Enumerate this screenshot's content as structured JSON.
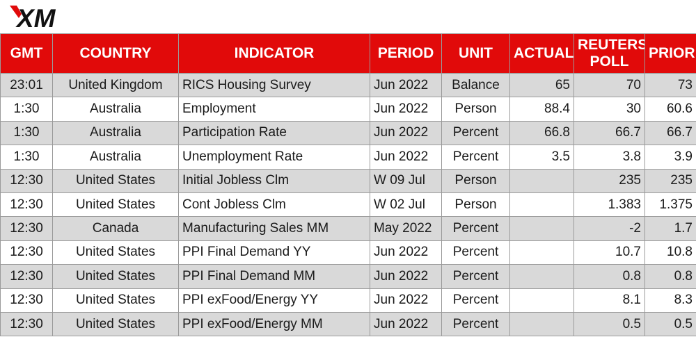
{
  "brand": {
    "logo_text": "XM",
    "accent": "#e10a0a"
  },
  "columns": [
    "GMT",
    "COUNTRY",
    "INDICATOR",
    "PERIOD",
    "UNIT",
    "ACTUAL",
    "REUTERS POLL",
    "PRIOR"
  ],
  "rows": [
    {
      "gmt": "23:01",
      "country": "United Kingdom",
      "indicator": "RICS Housing Survey",
      "period": "Jun 2022",
      "unit": "Balance",
      "actual": "65",
      "poll": "70",
      "prior": "73"
    },
    {
      "gmt": "1:30",
      "country": "Australia",
      "indicator": "Employment",
      "period": "Jun 2022",
      "unit": "Person",
      "actual": "88.4",
      "poll": "30",
      "prior": "60.6"
    },
    {
      "gmt": "1:30",
      "country": "Australia",
      "indicator": "Participation Rate",
      "period": "Jun 2022",
      "unit": "Percent",
      "actual": "66.8",
      "poll": "66.7",
      "prior": "66.7"
    },
    {
      "gmt": "1:30",
      "country": "Australia",
      "indicator": "Unemployment Rate",
      "period": "Jun 2022",
      "unit": "Percent",
      "actual": "3.5",
      "poll": "3.8",
      "prior": "3.9"
    },
    {
      "gmt": "12:30",
      "country": "United States",
      "indicator": "Initial Jobless Clm",
      "period": "W 09 Jul",
      "unit": "Person",
      "actual": "",
      "poll": "235",
      "prior": "235"
    },
    {
      "gmt": "12:30",
      "country": "United States",
      "indicator": "Cont Jobless Clm",
      "period": "W 02 Jul",
      "unit": "Person",
      "actual": "",
      "poll": "1.383",
      "prior": "1.375"
    },
    {
      "gmt": "12:30",
      "country": "Canada",
      "indicator": "Manufacturing Sales MM",
      "period": "May 2022",
      "unit": "Percent",
      "actual": "",
      "poll": "-2",
      "prior": "1.7"
    },
    {
      "gmt": "12:30",
      "country": "United States",
      "indicator": "PPI Final Demand YY",
      "period": "Jun 2022",
      "unit": "Percent",
      "actual": "",
      "poll": "10.7",
      "prior": "10.8"
    },
    {
      "gmt": "12:30",
      "country": "United States",
      "indicator": "PPI Final Demand MM",
      "period": "Jun 2022",
      "unit": "Percent",
      "actual": "",
      "poll": "0.8",
      "prior": "0.8"
    },
    {
      "gmt": "12:30",
      "country": "United States",
      "indicator": "PPI exFood/Energy YY",
      "period": "Jun 2022",
      "unit": "Percent",
      "actual": "",
      "poll": "8.1",
      "prior": "8.3"
    },
    {
      "gmt": "12:30",
      "country": "United States",
      "indicator": "PPI exFood/Energy MM",
      "period": "Jun 2022",
      "unit": "Percent",
      "actual": "",
      "poll": "0.5",
      "prior": "0.5"
    }
  ]
}
